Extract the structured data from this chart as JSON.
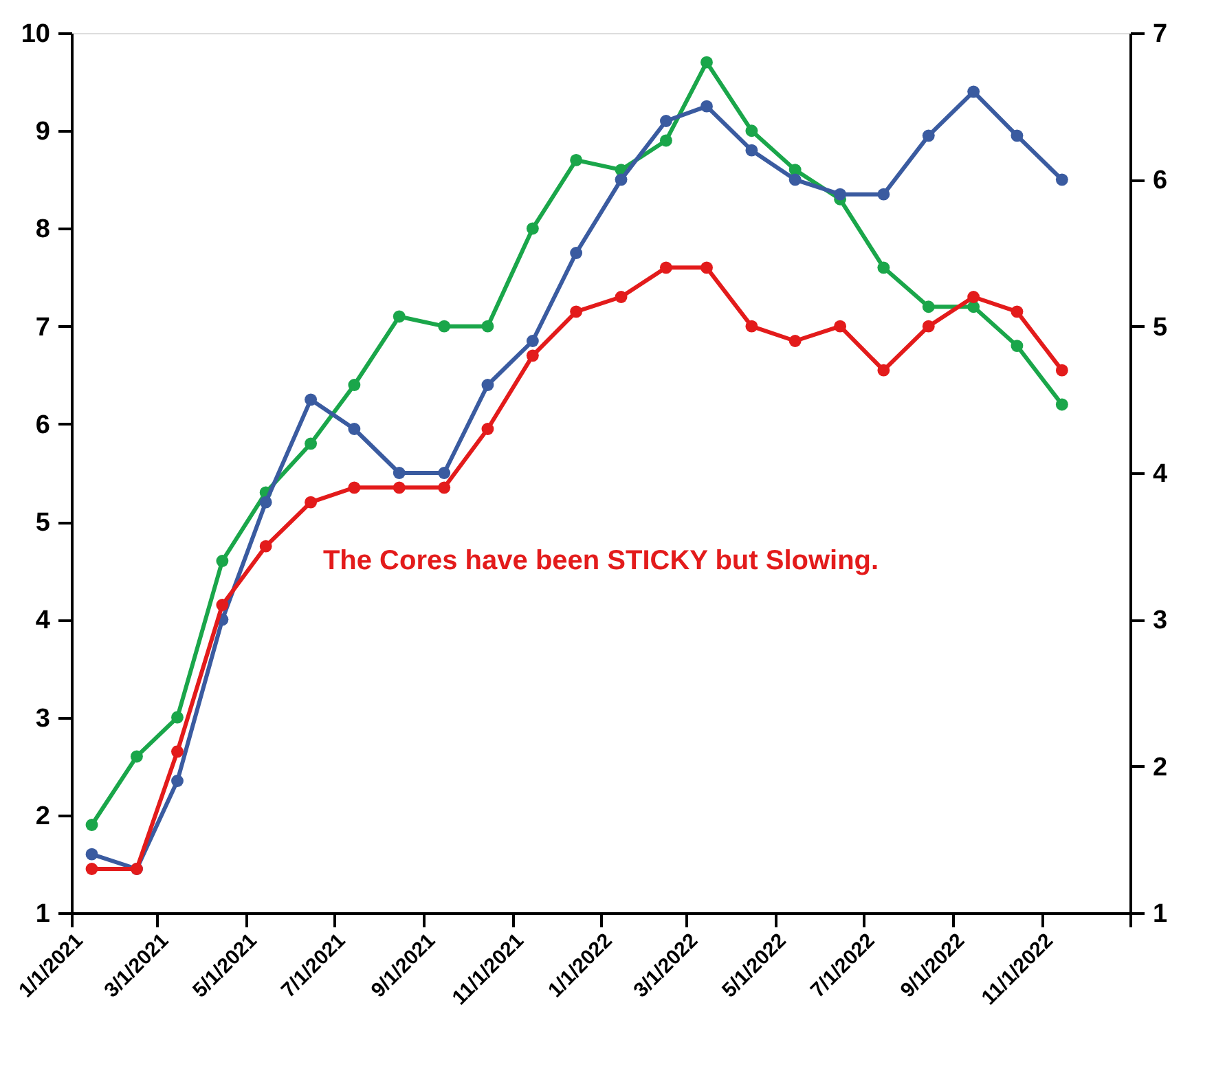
{
  "chart_data": {
    "type": "line",
    "x": [
      "2021-01-15",
      "2021-02-15",
      "2021-03-15",
      "2021-04-15",
      "2021-05-15",
      "2021-06-15",
      "2021-07-15",
      "2021-08-15",
      "2021-09-15",
      "2021-10-15",
      "2021-11-15",
      "2021-12-15",
      "2022-01-15",
      "2022-02-15",
      "2022-03-15",
      "2022-04-15",
      "2022-05-15",
      "2022-06-15",
      "2022-07-15",
      "2022-08-15",
      "2022-09-15",
      "2022-10-15",
      "2022-11-15"
    ],
    "series": [
      {
        "color": "#1aa64a",
        "values": [
          1.9,
          2.6,
          3.0,
          4.6,
          5.3,
          5.8,
          6.4,
          7.1,
          7.0,
          7.0,
          8.0,
          8.7,
          8.6,
          8.9,
          9.7,
          9.0,
          8.6,
          8.3,
          7.6,
          7.2,
          7.2,
          6.8,
          6.2
        ]
      },
      {
        "color": "#3a5ba0",
        "axis": "y2",
        "values": [
          1.4,
          1.3,
          1.9,
          3.0,
          3.8,
          4.5,
          4.3,
          4.0,
          4.0,
          4.6,
          4.9,
          5.5,
          6.0,
          6.4,
          6.5,
          6.2,
          6.0,
          5.9,
          5.9,
          6.3,
          6.6,
          6.3,
          6.0
        ]
      },
      {
        "color": "#e31b1b",
        "axis": "y2",
        "values": [
          1.3,
          1.3,
          2.1,
          3.1,
          3.5,
          3.8,
          3.9,
          3.9,
          3.9,
          4.3,
          4.8,
          5.1,
          5.2,
          5.4,
          5.4,
          5.0,
          4.9,
          5.0,
          4.7,
          5.0,
          5.2,
          5.1,
          4.7
        ]
      }
    ],
    "xlim": [
      "2021-01-01",
      "2023-01-01"
    ],
    "xticks": [
      {
        "value": "2021-01-01",
        "label": "1/1/2021"
      },
      {
        "value": "2021-03-01",
        "label": "3/1/2021"
      },
      {
        "value": "2021-05-01",
        "label": "5/1/2021"
      },
      {
        "value": "2021-07-01",
        "label": "7/1/2021"
      },
      {
        "value": "2021-09-01",
        "label": "9/1/2021"
      },
      {
        "value": "2021-11-01",
        "label": "11/1/2021"
      },
      {
        "value": "2022-01-01",
        "label": "1/1/2022"
      },
      {
        "value": "2022-03-01",
        "label": "3/1/2022"
      },
      {
        "value": "2022-05-01",
        "label": "5/1/2022"
      },
      {
        "value": "2022-07-01",
        "label": "7/1/2022"
      },
      {
        "value": "2022-09-01",
        "label": "9/1/2022"
      },
      {
        "value": "2022-11-01",
        "label": "11/1/2022"
      },
      {
        "value": "2023-01-01",
        "label": null
      }
    ],
    "ylim": [
      1,
      10
    ],
    "yticks": [
      1,
      2,
      3,
      4,
      5,
      6,
      7,
      8,
      9,
      10
    ],
    "y2lim": [
      1,
      7
    ],
    "y2ticks": [
      1,
      2,
      3,
      4,
      5,
      6,
      7
    ],
    "marker": "circle",
    "grid": false,
    "annotations": [
      "The Cores have been STICKY but Slowing."
    ]
  }
}
